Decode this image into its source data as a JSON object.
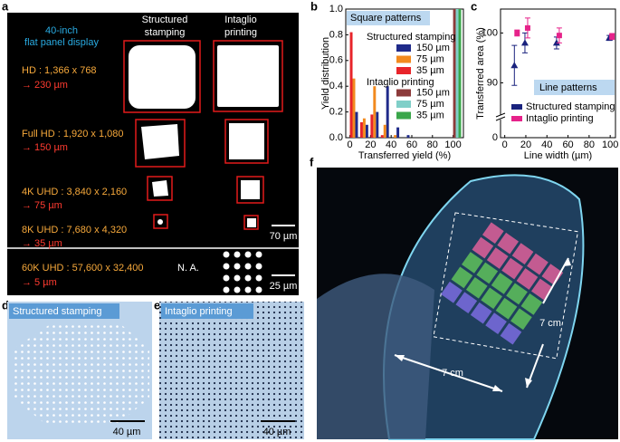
{
  "panel_labels": [
    "a",
    "b",
    "c",
    "d",
    "e",
    "f"
  ],
  "panel_a": {
    "display_title": [
      "40-inch",
      "flat panel display"
    ],
    "column_titles": [
      [
        "Structured",
        "stamping"
      ],
      [
        "Intaglio",
        "printing"
      ]
    ],
    "rows": [
      {
        "resolution": "HD : 1,366 x 768",
        "pitch": "→ 230 µm"
      },
      {
        "resolution": "Full HD : 1,920 x 1,080",
        "pitch": "→ 150 µm"
      },
      {
        "resolution": "4K UHD : 3,840 x 2,160",
        "pitch": "→ 75 µm"
      },
      {
        "resolution": "8K UHD : 7,680 x 4,320",
        "pitch": "→ 35 µm"
      },
      {
        "resolution": "60K UHD : 57,600 x 32,400",
        "pitch": "→ 5 µm",
        "stamping": "N. A."
      }
    ],
    "scale_bars": [
      "70 µm",
      "25 µm"
    ]
  },
  "chart_data": [
    {
      "type": "bar",
      "annotation": "Square patterns",
      "xlabel": "Transferred yield (%)",
      "ylabel": "Yield distribution",
      "x": [
        0,
        10,
        20,
        30,
        40,
        50,
        100
      ],
      "xlim": [
        -4,
        110
      ],
      "xticks": [
        0,
        20,
        40,
        60,
        80,
        100
      ],
      "ylim": [
        0,
        1
      ],
      "yticks": [
        {
          "value": 0,
          "label": "0.0"
        },
        0.2,
        0.4,
        0.6,
        0.8,
        {
          "value": 1,
          "label": "1.0"
        }
      ],
      "legend_groups": [
        "Structured stamping",
        "Intaglio printing"
      ],
      "series": [
        {
          "name": "150 µm",
          "color": "#1f2a8a",
          "values": [
            0.2,
            0.1,
            0.2,
            0.4,
            0.08,
            0.02,
            0
          ]
        },
        {
          "name": "75 µm",
          "color": "#f28a1e",
          "values": [
            0.46,
            0.15,
            0.4,
            0.1,
            0.02,
            0,
            0
          ]
        },
        {
          "name": "35 µm",
          "color": "#e8242a",
          "values": [
            0.82,
            0.12,
            0.18,
            0.02,
            0,
            0,
            0
          ]
        },
        {
          "name": "150 µm",
          "color": "#8c3a3a",
          "values": [
            0,
            0,
            0,
            0,
            0,
            0,
            1
          ]
        },
        {
          "name": "75 µm",
          "color": "#80cfc8",
          "values": [
            0,
            0,
            0,
            0,
            0,
            0,
            1
          ]
        },
        {
          "name": "35 µm",
          "color": "#3aa64a",
          "values": [
            0,
            0,
            0,
            0,
            0,
            0,
            1
          ]
        }
      ]
    },
    {
      "type": "scatter",
      "annotation": "Line patterns",
      "xlabel": "Line width (µm)",
      "ylabel": "Transferred area (%)",
      "xlim": [
        -4,
        105
      ],
      "xticks": [
        0,
        20,
        40,
        60,
        80,
        100
      ],
      "ylim": [
        79,
        104.8
      ],
      "yticks": [
        0,
        90,
        100
      ],
      "axis_break": true,
      "series": [
        {
          "name": "Structured stamping",
          "color": "#1a237e",
          "marker": "triangle",
          "x": [
            10,
            20,
            50,
            100
          ],
          "values": [
            93.5,
            98,
            98,
            99
          ],
          "errors": [
            4,
            2,
            1.2,
            0.5
          ]
        },
        {
          "name": "Intaglio printing",
          "color": "#e6228a",
          "marker": "square",
          "x": [
            10,
            20,
            50,
            100
          ],
          "values": [
            100,
            101,
            99.5,
            99.3
          ],
          "errors": [
            0.6,
            2,
            1.5,
            0.6
          ]
        }
      ]
    }
  ],
  "panel_d": {
    "label": "Structured stamping",
    "scale_bar": "40 µm"
  },
  "panel_e": {
    "label": "Intaglio printing",
    "scale_bar": "40 µm"
  },
  "panel_f": {
    "dimensions": [
      "7 cm",
      "7 cm"
    ]
  }
}
